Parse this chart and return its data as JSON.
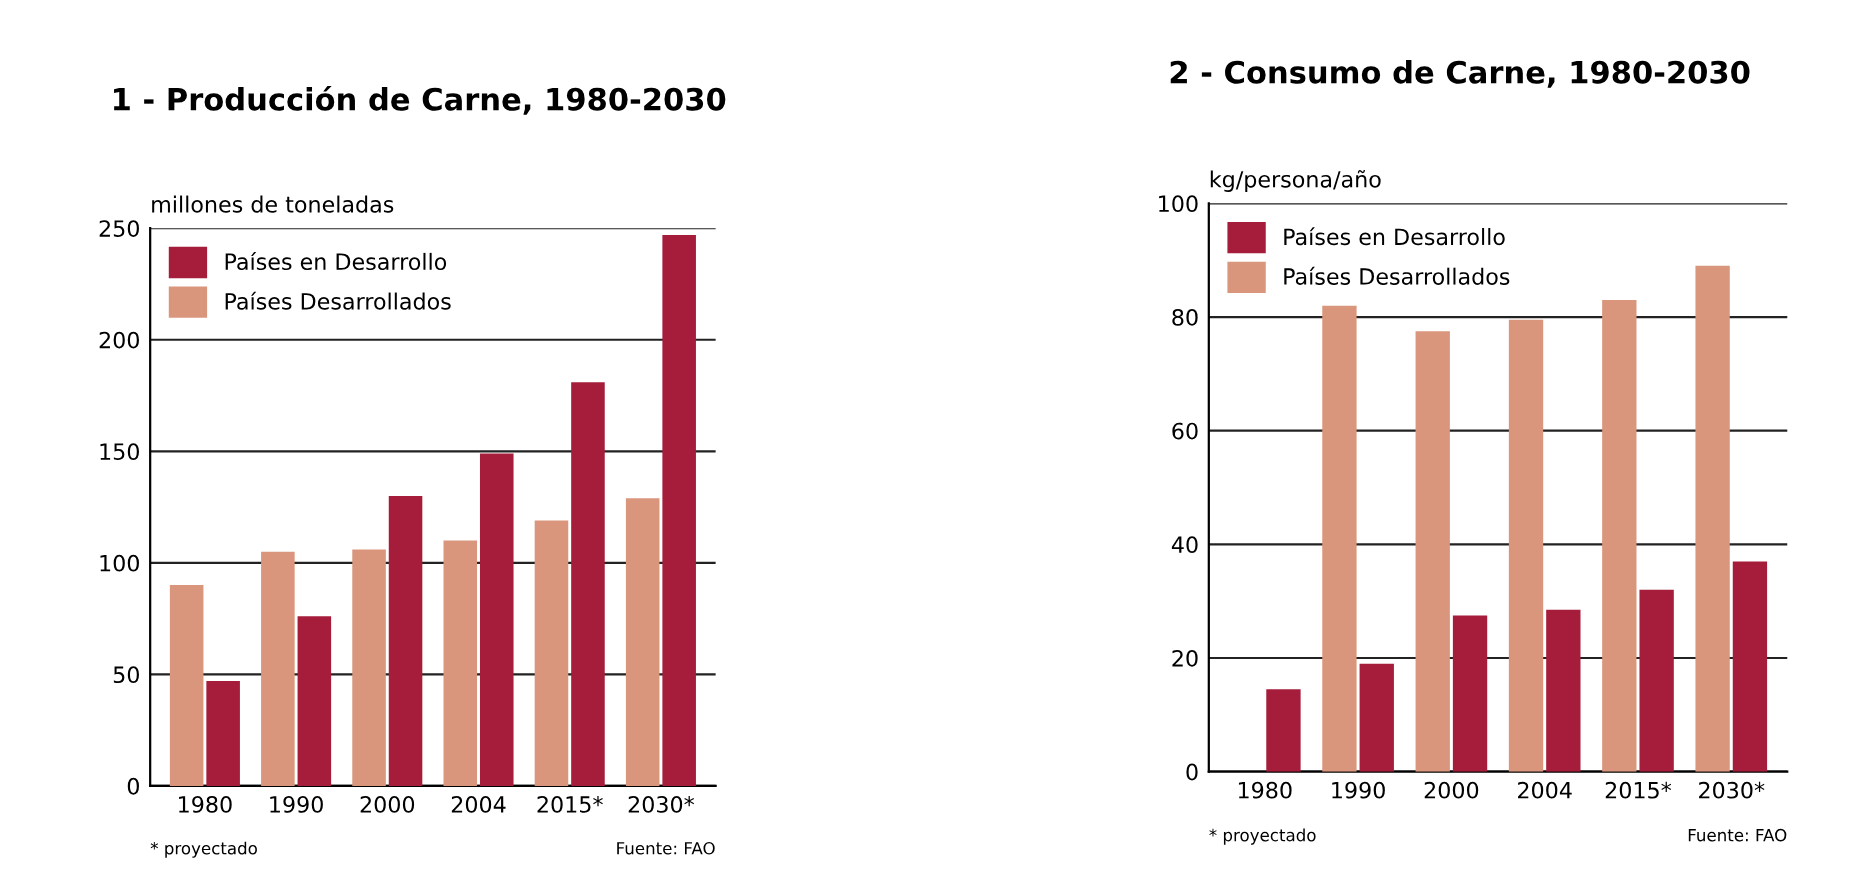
{
  "chart_data": [
    {
      "type": "bar",
      "title": "1 - Producción de Carne, 1980-2030",
      "ylabel": "millones de toneladas",
      "categories": [
        "1980",
        "1990",
        "2000",
        "2004",
        "2015*",
        "2030*"
      ],
      "series": [
        {
          "name": "Países Desarrollados",
          "color": "#d9967c",
          "values": [
            90,
            105,
            106,
            110,
            119,
            129
          ]
        },
        {
          "name": "Países en Desarrollo",
          "color": "#a51d3a",
          "values": [
            47,
            76,
            130,
            149,
            181,
            247
          ]
        }
      ],
      "ylim": [
        0,
        250
      ],
      "yticks": [
        0,
        50,
        100,
        150,
        200,
        250
      ],
      "grid": "y",
      "legend": "top left",
      "annotations": [
        "* proyectado",
        "Fuente: FAO"
      ]
    },
    {
      "type": "bar",
      "title": "2 - Consumo de Carne, 1980-2030",
      "ylabel": "kg/persona/año",
      "categories": [
        "1980",
        "1990",
        "2000",
        "2004",
        "2015*",
        "2030*"
      ],
      "series": [
        {
          "name": "Países Desarrollados",
          "color": "#d9967c",
          "values": [
            null,
            82,
            77.5,
            79.5,
            83,
            89
          ]
        },
        {
          "name": "Países en Desarrollo",
          "color": "#a51d3a",
          "values": [
            14.5,
            19,
            27.5,
            28.5,
            32,
            37
          ]
        }
      ],
      "ylim": [
        0,
        100
      ],
      "yticks": [
        0,
        20,
        40,
        60,
        80,
        100
      ],
      "grid": "y",
      "legend": "top left",
      "annotations": [
        "* proyectado",
        "Fuente: FAO"
      ]
    }
  ]
}
